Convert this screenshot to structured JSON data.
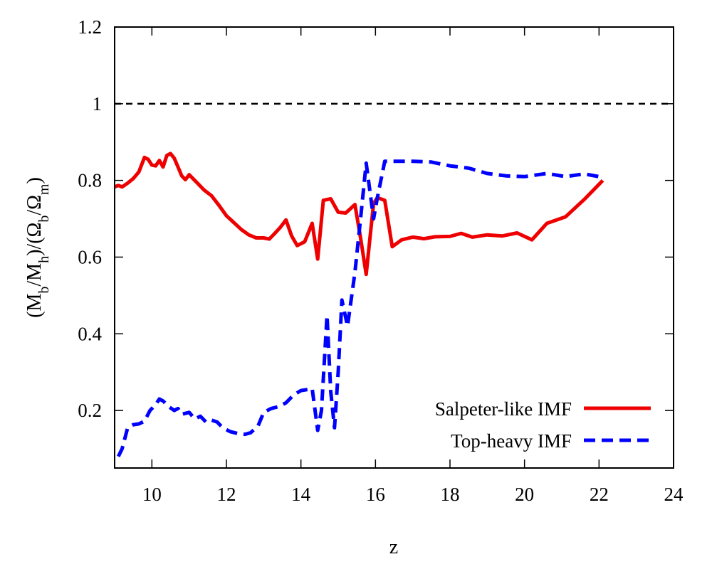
{
  "chart_data": {
    "type": "line",
    "title": "",
    "xlabel": "z",
    "ylabel": {
      "parts": [
        {
          "t": "(M",
          "sub": false
        },
        {
          "t": "b",
          "sub": true
        },
        {
          "t": "/M",
          "sub": false
        },
        {
          "t": "h",
          "sub": true
        },
        {
          "t": ")/(Ω",
          "sub": false
        },
        {
          "t": "b",
          "sub": true
        },
        {
          "t": "/Ω",
          "sub": false
        },
        {
          "t": "m",
          "sub": true
        },
        {
          "t": ")",
          "sub": false
        }
      ]
    },
    "xlim": [
      9,
      24
    ],
    "ylim": [
      0.05,
      1.2
    ],
    "xticks": [
      10,
      12,
      14,
      16,
      18,
      20,
      22,
      24
    ],
    "yticks": [
      0.2,
      0.4,
      0.6,
      0.8,
      1,
      1.2
    ],
    "xtick_labels": [
      "10",
      "12",
      "14",
      "16",
      "18",
      "20",
      "22",
      "24"
    ],
    "ytick_labels": [
      "0.2",
      "0.4",
      "0.6",
      "0.8",
      "1",
      "1.2"
    ],
    "grid": false,
    "legend_position": "bottom-right",
    "reference_line": {
      "y": 1.0,
      "style": "dashed",
      "color": "#000000"
    },
    "series": [
      {
        "name": "Salpeter-like IMF",
        "color": "#ee0000",
        "style": "solid",
        "points": [
          [
            9.0,
            0.783
          ],
          [
            9.1,
            0.787
          ],
          [
            9.2,
            0.783
          ],
          [
            9.35,
            0.793
          ],
          [
            9.5,
            0.805
          ],
          [
            9.65,
            0.822
          ],
          [
            9.8,
            0.86
          ],
          [
            9.9,
            0.855
          ],
          [
            10.0,
            0.84
          ],
          [
            10.1,
            0.838
          ],
          [
            10.2,
            0.852
          ],
          [
            10.3,
            0.835
          ],
          [
            10.4,
            0.865
          ],
          [
            10.5,
            0.87
          ],
          [
            10.6,
            0.858
          ],
          [
            10.7,
            0.835
          ],
          [
            10.8,
            0.812
          ],
          [
            10.9,
            0.802
          ],
          [
            11.0,
            0.815
          ],
          [
            11.2,
            0.795
          ],
          [
            11.4,
            0.775
          ],
          [
            11.6,
            0.76
          ],
          [
            11.8,
            0.735
          ],
          [
            12.0,
            0.708
          ],
          [
            12.2,
            0.69
          ],
          [
            12.4,
            0.672
          ],
          [
            12.6,
            0.658
          ],
          [
            12.8,
            0.65
          ],
          [
            13.0,
            0.65
          ],
          [
            13.15,
            0.647
          ],
          [
            13.3,
            0.662
          ],
          [
            13.45,
            0.678
          ],
          [
            13.6,
            0.697
          ],
          [
            13.75,
            0.655
          ],
          [
            13.9,
            0.63
          ],
          [
            14.1,
            0.64
          ],
          [
            14.3,
            0.688
          ],
          [
            14.45,
            0.595
          ],
          [
            14.6,
            0.748
          ],
          [
            14.8,
            0.752
          ],
          [
            15.0,
            0.717
          ],
          [
            15.2,
            0.715
          ],
          [
            15.45,
            0.737
          ],
          [
            15.6,
            0.65
          ],
          [
            15.75,
            0.555
          ],
          [
            15.95,
            0.74
          ],
          [
            16.05,
            0.755
          ],
          [
            16.25,
            0.748
          ],
          [
            16.45,
            0.627
          ],
          [
            16.7,
            0.645
          ],
          [
            17.0,
            0.652
          ],
          [
            17.3,
            0.648
          ],
          [
            17.6,
            0.653
          ],
          [
            18.0,
            0.654
          ],
          [
            18.3,
            0.662
          ],
          [
            18.6,
            0.652
          ],
          [
            19.0,
            0.658
          ],
          [
            19.4,
            0.655
          ],
          [
            19.8,
            0.663
          ],
          [
            20.2,
            0.645
          ],
          [
            20.6,
            0.688
          ],
          [
            21.1,
            0.705
          ],
          [
            21.6,
            0.75
          ],
          [
            22.1,
            0.8
          ]
        ]
      },
      {
        "name": "Top-heavy IMF",
        "color": "#0000ff",
        "style": "dashed",
        "points": [
          [
            9.1,
            0.08
          ],
          [
            9.2,
            0.1
          ],
          [
            9.35,
            0.155
          ],
          [
            9.5,
            0.163
          ],
          [
            9.65,
            0.165
          ],
          [
            9.8,
            0.172
          ],
          [
            9.95,
            0.2
          ],
          [
            10.1,
            0.215
          ],
          [
            10.2,
            0.23
          ],
          [
            10.3,
            0.225
          ],
          [
            10.45,
            0.21
          ],
          [
            10.6,
            0.2
          ],
          [
            10.7,
            0.205
          ],
          [
            10.8,
            0.19
          ],
          [
            11.0,
            0.195
          ],
          [
            11.15,
            0.178
          ],
          [
            11.3,
            0.185
          ],
          [
            11.45,
            0.17
          ],
          [
            11.6,
            0.175
          ],
          [
            11.75,
            0.17
          ],
          [
            11.9,
            0.155
          ],
          [
            12.1,
            0.145
          ],
          [
            12.3,
            0.14
          ],
          [
            12.5,
            0.138
          ],
          [
            12.65,
            0.142
          ],
          [
            12.85,
            0.16
          ],
          [
            13.0,
            0.195
          ],
          [
            13.2,
            0.205
          ],
          [
            13.4,
            0.21
          ],
          [
            13.6,
            0.22
          ],
          [
            13.8,
            0.24
          ],
          [
            14.0,
            0.252
          ],
          [
            14.2,
            0.255
          ],
          [
            14.3,
            0.258
          ],
          [
            14.45,
            0.148
          ],
          [
            14.55,
            0.2
          ],
          [
            14.7,
            0.448
          ],
          [
            14.8,
            0.25
          ],
          [
            14.9,
            0.155
          ],
          [
            15.0,
            0.3
          ],
          [
            15.1,
            0.488
          ],
          [
            15.25,
            0.42
          ],
          [
            15.45,
            0.56
          ],
          [
            15.6,
            0.7
          ],
          [
            15.75,
            0.845
          ],
          [
            15.95,
            0.7
          ],
          [
            16.05,
            0.755
          ],
          [
            16.25,
            0.85
          ],
          [
            16.5,
            0.85
          ],
          [
            17.0,
            0.85
          ],
          [
            17.5,
            0.848
          ],
          [
            18.0,
            0.838
          ],
          [
            18.5,
            0.832
          ],
          [
            19.0,
            0.818
          ],
          [
            19.5,
            0.812
          ],
          [
            20.0,
            0.81
          ],
          [
            20.6,
            0.818
          ],
          [
            21.1,
            0.81
          ],
          [
            21.6,
            0.817
          ],
          [
            22.1,
            0.808
          ]
        ]
      }
    ]
  }
}
